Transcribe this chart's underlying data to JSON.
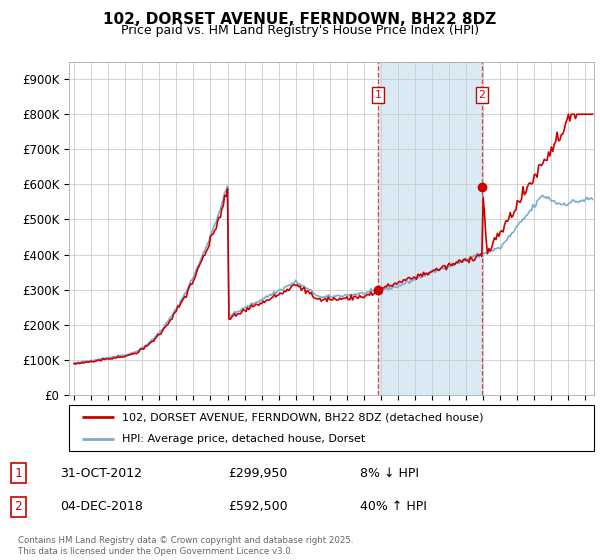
{
  "title": "102, DORSET AVENUE, FERNDOWN, BH22 8DZ",
  "subtitle": "Price paid vs. HM Land Registry's House Price Index (HPI)",
  "legend_label_red": "102, DORSET AVENUE, FERNDOWN, BH22 8DZ (detached house)",
  "legend_label_blue": "HPI: Average price, detached house, Dorset",
  "annotation1_label": "1",
  "annotation1_date": "31-OCT-2012",
  "annotation1_price": "£299,950",
  "annotation1_hpi": "8% ↓ HPI",
  "annotation2_label": "2",
  "annotation2_date": "04-DEC-2018",
  "annotation2_price": "£592,500",
  "annotation2_hpi": "40% ↑ HPI",
  "footnote": "Contains HM Land Registry data © Crown copyright and database right 2025.\nThis data is licensed under the Open Government Licence v3.0.",
  "red_color": "#cc0000",
  "blue_color": "#7aadcc",
  "shading_color": "#daeaf5",
  "vline_color": "#dd4444",
  "sale1_year": 2012.83,
  "sale1_price": 299950,
  "sale2_year": 2018.92,
  "sale2_price": 592500,
  "ylim": [
    0,
    950000
  ],
  "yticks": [
    0,
    100000,
    200000,
    300000,
    400000,
    500000,
    600000,
    700000,
    800000,
    900000
  ],
  "xlim_start": 1994.7,
  "xlim_end": 2025.5
}
